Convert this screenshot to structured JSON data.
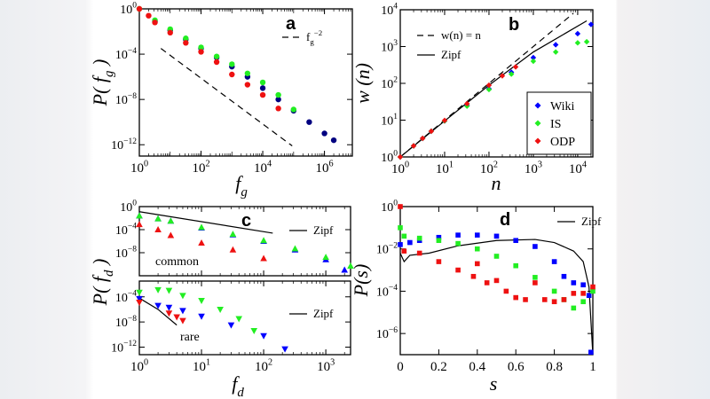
{
  "chart_data": [
    {
      "panel": "a",
      "type": "scatter",
      "xscale": "log",
      "yscale": "log",
      "xlim": [
        1,
        8000000.0
      ],
      "ylim": [
        1e-13,
        1
      ],
      "xticks": [
        1,
        100,
        10000,
        1000000
      ],
      "xtick_labels": [
        "10^{0}",
        "10^{2}",
        "10^{4}",
        "10^{6}"
      ],
      "yticks": [
        1,
        0.0001,
        1e-08,
        1e-12
      ],
      "ytick_labels": [
        "10^{0}",
        "10^{−4}",
        "10^{−8}",
        "10^{−12}"
      ],
      "xlabel": "f_{g}",
      "ylabel": "P( f_{g} )",
      "grid": false,
      "series": [
        {
          "color": "#000080",
          "x": [
            3.2,
            10,
            32,
            100,
            320,
            1000,
            3200,
            10000,
            32000,
            100000,
            320000,
            1000000,
            2000000
          ],
          "y": [
            0.079,
            0.013,
            0.002,
            0.00032,
            5e-05,
            7.9e-06,
            1e-06,
            1e-07,
            1e-08,
            1e-09,
            1e-10,
            1e-11,
            2.5e-12
          ]
        },
        {
          "color": "#22ee22",
          "x": [
            1,
            3.2,
            10,
            32,
            100,
            320,
            1000,
            3200,
            10000,
            32000,
            100000
          ],
          "y": [
            1,
            0.1,
            0.016,
            0.0025,
            0.0004,
            6.3e-05,
            1.3e-05,
            2e-06,
            3.2e-07,
            2.5e-08,
            1.3e-09
          ]
        },
        {
          "color": "#ee1111",
          "x": [
            1,
            2,
            3.2,
            10,
            32,
            100,
            320,
            1000,
            3200,
            10000,
            32000
          ],
          "y": [
            1,
            0.25,
            0.063,
            0.0079,
            0.001,
            0.00016,
            2e-05,
            1.6e-06,
            2e-07,
            2.5e-08,
            1.6e-09
          ]
        }
      ],
      "lines": [
        {
          "name": "f_{g}^{−2}",
          "style": "dashed",
          "x": [
            5,
            90000
          ],
          "y": [
            0.00032,
            7.9e-13
          ]
        }
      ],
      "annotations": []
    },
    {
      "panel": "b",
      "type": "scatter",
      "xscale": "log",
      "yscale": "log",
      "xlim": [
        1,
        22000
      ],
      "ylim": [
        1,
        10000
      ],
      "xticks": [
        1,
        10,
        100,
        1000,
        10000
      ],
      "xtick_labels": [
        "10^{0}",
        "10^{1}",
        "10^{2}",
        "10^{3}",
        "10^{4}"
      ],
      "yticks": [
        1,
        10,
        100,
        1000,
        10000
      ],
      "ytick_labels": [
        "10^{0}",
        "10^{1}",
        "10^{2}",
        "10^{3}",
        "10^{4}"
      ],
      "xlabel": "n",
      "ylabel": "w (n)",
      "grid": false,
      "legend_position": "right",
      "series": [
        {
          "name": "Wiki",
          "color": "#0000ff",
          "x": [
            1,
            2,
            3.2,
            5,
            10,
            32,
            100,
            320,
            1000,
            3200,
            10000,
            20000
          ],
          "y": [
            1,
            2,
            3.2,
            5,
            9.5,
            25,
            71,
            200,
            500,
            1120,
            2240,
            4000
          ]
        },
        {
          "name": "IS",
          "color": "#22ee22",
          "x": [
            1,
            2,
            3.2,
            5,
            10,
            32,
            100,
            320,
            1000,
            3200,
            10000,
            16000
          ],
          "y": [
            1,
            2,
            3.2,
            5,
            9.5,
            24,
            68,
            178,
            400,
            710,
            1260,
            1350
          ]
        },
        {
          "name": "ODP",
          "color": "#ee1111",
          "x": [
            1,
            2,
            3.2,
            5,
            10,
            32,
            100,
            200,
            400
          ],
          "y": [
            1,
            2,
            3.2,
            5,
            9.8,
            28,
            89,
            160,
            280
          ]
        }
      ],
      "lines": [
        {
          "name": "w(n) = n",
          "style": "dashed",
          "x": [
            1,
            8000
          ],
          "y": [
            1,
            8000
          ]
        },
        {
          "name": "Zipf",
          "style": "solid",
          "x": [
            1,
            10,
            100,
            1000,
            16000
          ],
          "y": [
            1,
            9.5,
            89,
            710,
            5000
          ]
        }
      ],
      "annotations": []
    },
    {
      "panel": "c",
      "type": "scatter",
      "xscale": "log",
      "yscale": "log",
      "xlim": [
        1,
        2500
      ],
      "ylim": [
        1e-12,
        1
      ],
      "xticks": [
        1,
        10,
        100,
        1000
      ],
      "xtick_labels": [
        "",
        "",
        "",
        ""
      ],
      "yticks": [
        1,
        0.0001,
        1e-08
      ],
      "ytick_labels": [
        "10^{0}",
        "10^{−4}",
        "10^{−8}"
      ],
      "xlabel": "",
      "ylabel": "P( f_{d} )",
      "grid": false,
      "series": [
        {
          "color": "#0000ff",
          "x": [
            1,
            2,
            3.2,
            10,
            32,
            100,
            320,
            1000,
            2000
          ],
          "y": [
            0.025,
            0.0079,
            0.0032,
            0.0002,
            1.3e-05,
            1e-06,
            3.2e-08,
            6.3e-10,
            1e-11
          ]
        },
        {
          "color": "#22ee22",
          "x": [
            1,
            2,
            3.2,
            10,
            32,
            100,
            320,
            1000,
            2500
          ],
          "y": [
            0.025,
            0.0079,
            0.0032,
            0.00025,
            1.6e-05,
            1.3e-06,
            5e-08,
            1.6e-09,
            5e-11
          ]
        },
        {
          "color": "#ee1111",
          "x": [
            1,
            2,
            3.2,
            10,
            32,
            100
          ],
          "y": [
            0.00079,
            0.0001,
            1e-05,
            5e-07,
            3.2e-08,
            1e-09
          ]
        }
      ],
      "lines": [
        {
          "name": "Zipf",
          "style": "solid",
          "x": [
            1,
            140
          ],
          "y": [
            0.13,
            2.5e-05
          ]
        }
      ],
      "annotations": [
        "common"
      ]
    },
    {
      "panel": "",
      "type": "scatter",
      "xscale": "log",
      "yscale": "log",
      "xlim": [
        1,
        2500
      ],
      "ylim": [
        6.3e-14,
        0.032
      ],
      "xticks": [
        1,
        10,
        100,
        1000
      ],
      "xtick_labels": [
        "10^{0}",
        "10^{1}",
        "10^{2}",
        "10^{3}"
      ],
      "yticks": [
        0.0001,
        1e-08,
        1e-12
      ],
      "ytick_labels": [
        "10^{−4}",
        "10^{−8}",
        "10^{−12}"
      ],
      "xlabel": "f_{d}",
      "ylabel": "",
      "grid": false,
      "series": [
        {
          "color": "#0000ff",
          "x": [
            1,
            2,
            3,
            5,
            10,
            30,
            100,
            220
          ],
          "y": [
            5e-05,
            4e-06,
            2e-06,
            6.3e-07,
            7.9e-08,
            3.2e-09,
            6.3e-11,
            5e-13
          ]
        },
        {
          "color": "#22ee22",
          "x": [
            1,
            2,
            3,
            5,
            10,
            20,
            40,
            70
          ],
          "y": [
            0.0005,
            0.0013,
            0.001,
            0.00016,
            2.5e-05,
            1e-06,
            3.2e-08,
            4e-10
          ]
        },
        {
          "color": "#ee1111",
          "x": [
            1,
            3,
            4,
            5
          ],
          "y": [
            1.3e-05,
            2.5e-07,
            6.3e-08,
            1.6e-08
          ]
        }
      ],
      "lines": [
        {
          "name": "Zipf",
          "style": "solid",
          "x": [
            1,
            2,
            4
          ],
          "y": [
            6.3e-05,
            1e-06,
            3.2e-09
          ]
        }
      ],
      "annotations": [
        "rare"
      ]
    },
    {
      "panel": "d",
      "type": "scatter",
      "xscale": "linear",
      "yscale": "log",
      "xlim": [
        0,
        1
      ],
      "ylim": [
        1e-07,
        1
      ],
      "xticks": [
        0,
        0.2,
        0.4,
        0.6,
        0.8,
        1
      ],
      "xtick_labels": [
        "0",
        "0.2",
        "0.4",
        "0.6",
        "0.8",
        "1"
      ],
      "yticks": [
        1,
        0.01,
        0.0001,
        1e-06
      ],
      "ytick_labels": [
        "10^{0}",
        "10^{−2}",
        "10^{−4}",
        "10^{−6}"
      ],
      "xlabel": "s",
      "ylabel": "P(s)",
      "grid": false,
      "series": [
        {
          "color": "#0000ff",
          "x": [
            0,
            0.05,
            0.1,
            0.2,
            0.3,
            0.4,
            0.5,
            0.6,
            0.7,
            0.8,
            0.85,
            0.9,
            0.95,
            0.98,
            0.99
          ],
          "y": [
            0.016,
            0.02,
            0.025,
            0.035,
            0.045,
            0.045,
            0.04,
            0.025,
            0.013,
            0.0025,
            0.0005,
            0.00025,
            0.0002,
            6.3e-05,
            1.3e-07
          ]
        },
        {
          "color": "#22ee22",
          "x": [
            0,
            0.02,
            0.1,
            0.2,
            0.3,
            0.4,
            0.5,
            0.6,
            0.7,
            0.8,
            0.85,
            0.9,
            0.95,
            1
          ],
          "y": [
            0.1,
            0.04,
            0.032,
            0.025,
            0.018,
            0.01,
            0.0045,
            0.0016,
            0.00045,
            0.0001,
            4e-05,
            1.6e-05,
            3.2e-05,
            0.0001
          ]
        },
        {
          "color": "#ee1111",
          "x": [
            0,
            0.02,
            0.1,
            0.2,
            0.3,
            0.38,
            0.4,
            0.45,
            0.5,
            0.55,
            0.6,
            0.65,
            0.7,
            0.75,
            0.8,
            0.85,
            0.9,
            0.95,
            1
          ],
          "y": [
            1,
            0.0079,
            0.0063,
            0.0025,
            0.001,
            0.0005,
            0.002,
            0.00025,
            0.00032,
            0.0001,
            5e-05,
            4e-05,
            0.00025,
            4e-05,
            3.2e-05,
            4e-05,
            7.9e-05,
            7.9e-05,
            0.00016
          ]
        }
      ],
      "lines": [
        {
          "name": "Zipf",
          "style": "solid",
          "x": [
            0,
            0.02,
            0.05,
            0.15,
            0.3,
            0.5,
            0.7,
            0.8,
            0.9,
            0.95,
            0.98,
            1
          ],
          "y": [
            0.0063,
            0.0025,
            0.005,
            0.0063,
            0.014,
            0.025,
            0.028,
            0.02,
            0.0079,
            0.0025,
            0.00016,
            1e-07
          ]
        }
      ],
      "annotations": []
    }
  ]
}
